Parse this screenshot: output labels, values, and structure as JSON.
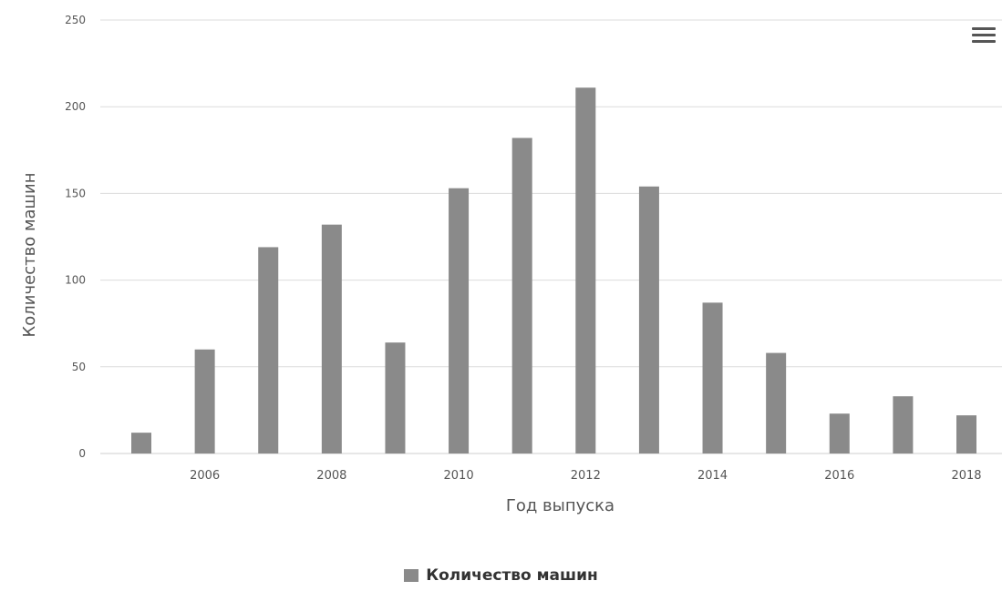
{
  "menu_icon": "hamburger-menu-icon",
  "colors": {
    "bar": "#8a8a8a",
    "grid": "#dcdcdc",
    "axis_text": "#555555",
    "title_text": "#555555"
  },
  "chart_data": {
    "type": "bar",
    "x": [
      2005,
      2006,
      2007,
      2008,
      2009,
      2010,
      2011,
      2012,
      2013,
      2014,
      2015,
      2016,
      2017,
      2018
    ],
    "series": [
      {
        "name": "Количество машин",
        "values": [
          12,
          60,
          119,
          132,
          64,
          153,
          182,
          211,
          154,
          87,
          58,
          23,
          33,
          22
        ]
      }
    ],
    "xticks": [
      2006,
      2008,
      2010,
      2012,
      2014,
      2016,
      2018
    ],
    "yticks": [
      0,
      50,
      100,
      150,
      200,
      250
    ],
    "ylim": [
      0,
      250
    ],
    "xlabel": "Год выпуска",
    "ylabel": "Количество машин",
    "grid": true,
    "legend": "bottom-center"
  }
}
